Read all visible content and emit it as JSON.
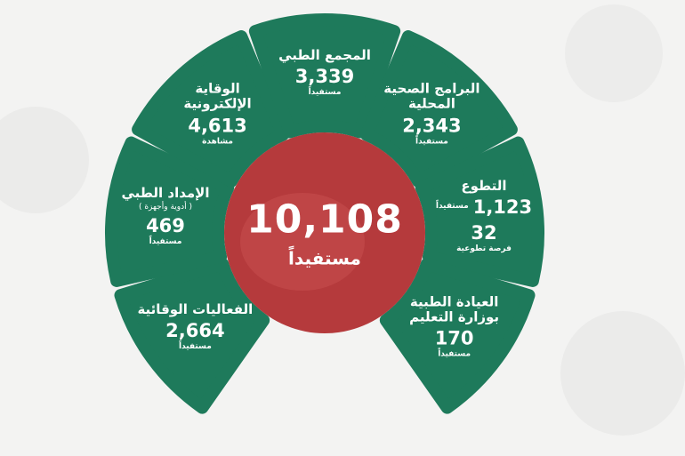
{
  "colors": {
    "segment": "#1e7a5b",
    "center": "#b53a3c",
    "background": "#f3f3f2",
    "text": "#ffffff"
  },
  "total": {
    "value": "10,108",
    "label": "مستفيداً"
  },
  "segments": [
    {
      "title": "الفعاليات الوقائية",
      "value": "2,664",
      "unit": "مستفيداً"
    },
    {
      "title": "الإمداد الطبي",
      "note": "( أدوية وأجهزة )",
      "value": "469",
      "unit": "مستفيداً"
    },
    {
      "title": "الوقاية الإلكترونية",
      "value": "4,613",
      "unit": "مشاهدة"
    },
    {
      "title": "المجمع الطبي",
      "value": "3,339",
      "unit": "مستفيداً"
    },
    {
      "title": "البرامج الصحية المحلية",
      "value": "2,343",
      "unit": "مستفيداً"
    },
    {
      "title": "التطوع",
      "value": "1,123",
      "unit": "مستفيداً",
      "value2": "32",
      "unit2": "فرصة تطوعية"
    },
    {
      "title": "العيادة الطبية بوزارة التعليم",
      "value": "170",
      "unit": "مستفيداً"
    }
  ]
}
